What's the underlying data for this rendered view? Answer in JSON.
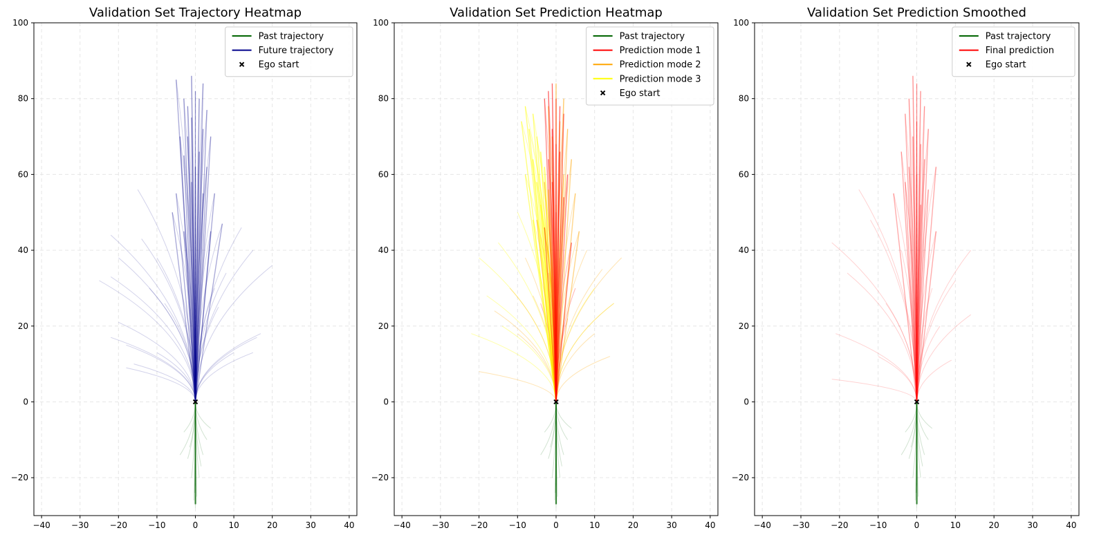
{
  "chart_data": [
    {
      "type": "line",
      "title": "Validation Set Trajectory Heatmap",
      "xlabel": "",
      "ylabel": "",
      "xlim": [
        -42,
        42
      ],
      "ylim": [
        -30,
        100
      ],
      "xticks": [
        -40,
        -30,
        -20,
        -10,
        0,
        10,
        20,
        30,
        40
      ],
      "yticks": [
        -20,
        0,
        20,
        40,
        60,
        80,
        100
      ],
      "grid": true,
      "legend_position": "top-right",
      "legend": [
        {
          "label": "Past trajectory",
          "color": "#006400",
          "kind": "line"
        },
        {
          "label": "Future trajectory",
          "color": "#00008b",
          "kind": "line"
        },
        {
          "label": "Ego start",
          "color": "#000000",
          "kind": "marker"
        }
      ],
      "ego_start": [
        0,
        0
      ],
      "series": [
        {
          "name": "Past trajectory",
          "color": "#006400",
          "opacity": 0.18,
          "endpoints": [
            [
              0,
              -28
            ],
            [
              -0.4,
              -26
            ],
            [
              0.4,
              -25
            ],
            [
              -1,
              -20
            ],
            [
              1,
              -20
            ],
            [
              -2,
              -15
            ],
            [
              2,
              -14
            ],
            [
              -4,
              -14
            ],
            [
              3,
              -10
            ],
            [
              -3,
              -8
            ],
            [
              0,
              -22
            ],
            [
              0.2,
              -27
            ],
            [
              -0.2,
              -24
            ],
            [
              1.5,
              -17
            ],
            [
              -1.5,
              -12
            ],
            [
              4,
              -7
            ]
          ]
        },
        {
          "name": "Future trajectory",
          "color": "#00008b",
          "opacity": 0.18,
          "endpoints": [
            [
              -1,
              86
            ],
            [
              -5,
              85
            ],
            [
              -3,
              80
            ],
            [
              2,
              84
            ],
            [
              3,
              77
            ],
            [
              -2,
              78
            ],
            [
              0,
              82
            ],
            [
              1,
              80
            ],
            [
              -1,
              75
            ],
            [
              2,
              72
            ],
            [
              -2,
              70
            ],
            [
              4,
              70
            ],
            [
              -4,
              70
            ],
            [
              1,
              66
            ],
            [
              -3,
              65
            ],
            [
              0,
              62
            ],
            [
              3,
              62
            ],
            [
              -1,
              58
            ],
            [
              5,
              55
            ],
            [
              -5,
              55
            ],
            [
              2,
              55
            ],
            [
              -15,
              56
            ],
            [
              7,
              47
            ],
            [
              12,
              46
            ],
            [
              -22,
              44
            ],
            [
              -14,
              43
            ],
            [
              15,
              40
            ],
            [
              20,
              36
            ],
            [
              -25,
              32
            ],
            [
              -20,
              38
            ],
            [
              -22,
              33
            ],
            [
              -10,
              38
            ],
            [
              8,
              34
            ],
            [
              17,
              18
            ],
            [
              16,
              17
            ],
            [
              -22,
              17
            ],
            [
              -20,
              21
            ],
            [
              -18,
              15
            ],
            [
              15,
              13
            ],
            [
              -18,
              9
            ],
            [
              -16,
              10
            ],
            [
              -8,
              26
            ],
            [
              5,
              30
            ],
            [
              -3,
              45
            ],
            [
              4,
              45
            ],
            [
              6,
              25
            ],
            [
              10,
              13
            ],
            [
              -10,
              13
            ],
            [
              -6,
              50
            ],
            [
              -12,
              30
            ]
          ]
        }
      ]
    },
    {
      "type": "line",
      "title": "Validation Set Prediction Heatmap",
      "xlabel": "",
      "ylabel": "",
      "xlim": [
        -42,
        42
      ],
      "ylim": [
        -30,
        100
      ],
      "xticks": [
        -40,
        -30,
        -20,
        -10,
        0,
        10,
        20,
        30,
        40
      ],
      "yticks": [
        -20,
        0,
        20,
        40,
        60,
        80,
        100
      ],
      "grid": true,
      "legend_position": "top-right",
      "legend": [
        {
          "label": "Past trajectory",
          "color": "#006400",
          "kind": "line"
        },
        {
          "label": "Prediction mode 1",
          "color": "#ff0000",
          "kind": "line"
        },
        {
          "label": "Prediction mode 2",
          "color": "#ffa500",
          "kind": "line"
        },
        {
          "label": "Prediction mode 3",
          "color": "#ffff00",
          "kind": "line"
        },
        {
          "label": "Ego start",
          "color": "#000000",
          "kind": "marker"
        }
      ],
      "ego_start": [
        0,
        0
      ],
      "series": [
        {
          "name": "Past trajectory",
          "color": "#006400",
          "opacity": 0.18,
          "endpoints": [
            [
              0,
              -28
            ],
            [
              -0.4,
              -26
            ],
            [
              0.4,
              -25
            ],
            [
              -1,
              -20
            ],
            [
              1,
              -20
            ],
            [
              -2,
              -15
            ],
            [
              2,
              -14
            ],
            [
              -4,
              -14
            ],
            [
              3,
              -10
            ],
            [
              -3,
              -8
            ],
            [
              0,
              -22
            ],
            [
              0.2,
              -27
            ],
            [
              -0.2,
              -24
            ],
            [
              1.5,
              -17
            ],
            [
              -1.5,
              -12
            ],
            [
              4,
              -7
            ]
          ]
        },
        {
          "name": "Prediction mode 3",
          "color": "#ffff00",
          "opacity": 0.35,
          "endpoints": [
            [
              -8,
              78
            ],
            [
              -6,
              76
            ],
            [
              -7,
              72
            ],
            [
              -5,
              70
            ],
            [
              -9,
              74
            ],
            [
              -4,
              66
            ],
            [
              -6,
              64
            ],
            [
              -3,
              62
            ],
            [
              -8,
              60
            ],
            [
              -5,
              58
            ],
            [
              -2,
              56
            ],
            [
              -4,
              52
            ],
            [
              -10,
              50
            ],
            [
              -6,
              48
            ],
            [
              -3,
              46
            ],
            [
              -15,
              42
            ],
            [
              -20,
              38
            ],
            [
              -18,
              28
            ],
            [
              -14,
              20
            ],
            [
              -22,
              18
            ],
            [
              10,
              30
            ],
            [
              15,
              26
            ]
          ]
        },
        {
          "name": "Prediction mode 2",
          "color": "#ffa500",
          "opacity": 0.3,
          "endpoints": [
            [
              0,
              84
            ],
            [
              2,
              80
            ],
            [
              -2,
              78
            ],
            [
              1,
              74
            ],
            [
              3,
              72
            ],
            [
              -1,
              70
            ],
            [
              4,
              64
            ],
            [
              2,
              60
            ],
            [
              -3,
              58
            ],
            [
              5,
              55
            ],
            [
              0,
              52
            ],
            [
              -5,
              48
            ],
            [
              6,
              45
            ],
            [
              8,
              40
            ],
            [
              -8,
              38
            ],
            [
              12,
              35
            ],
            [
              17,
              38
            ],
            [
              15,
              26
            ],
            [
              -12,
              30
            ],
            [
              -16,
              24
            ],
            [
              -10,
              18
            ],
            [
              14,
              12
            ],
            [
              -20,
              8
            ],
            [
              10,
              18
            ],
            [
              -6,
              28
            ]
          ]
        },
        {
          "name": "Prediction mode 1",
          "color": "#ff0000",
          "opacity": 0.3,
          "endpoints": [
            [
              -1,
              84
            ],
            [
              -2,
              82
            ],
            [
              0,
              80
            ],
            [
              1,
              78
            ],
            [
              -3,
              80
            ],
            [
              2,
              76
            ],
            [
              -1,
              72
            ],
            [
              0,
              68
            ],
            [
              1,
              66
            ],
            [
              -2,
              64
            ],
            [
              3,
              60
            ],
            [
              -1,
              58
            ],
            [
              2,
              54
            ],
            [
              0,
              50
            ],
            [
              -3,
              46
            ],
            [
              4,
              42
            ],
            [
              1,
              38
            ],
            [
              -2,
              34
            ],
            [
              5,
              30
            ],
            [
              -4,
              26
            ],
            [
              3,
              22
            ]
          ]
        }
      ]
    },
    {
      "type": "line",
      "title": "Validation Set Prediction Smoothed",
      "xlabel": "",
      "ylabel": "",
      "xlim": [
        -42,
        42
      ],
      "ylim": [
        -30,
        100
      ],
      "xticks": [
        -40,
        -30,
        -20,
        -10,
        0,
        10,
        20,
        30,
        40
      ],
      "yticks": [
        -20,
        0,
        20,
        40,
        60,
        80,
        100
      ],
      "grid": true,
      "legend_position": "top-right",
      "legend": [
        {
          "label": "Past trajectory",
          "color": "#006400",
          "kind": "line"
        },
        {
          "label": "Final prediction",
          "color": "#ff0000",
          "kind": "line"
        },
        {
          "label": "Ego start",
          "color": "#000000",
          "kind": "marker"
        }
      ],
      "ego_start": [
        0,
        0
      ],
      "series": [
        {
          "name": "Past trajectory",
          "color": "#006400",
          "opacity": 0.18,
          "endpoints": [
            [
              0,
              -28
            ],
            [
              -0.4,
              -26
            ],
            [
              0.4,
              -25
            ],
            [
              -1,
              -20
            ],
            [
              1,
              -20
            ],
            [
              -2,
              -15
            ],
            [
              2,
              -14
            ],
            [
              -4,
              -14
            ],
            [
              3,
              -10
            ],
            [
              -3,
              -8
            ],
            [
              0,
              -22
            ],
            [
              0.2,
              -27
            ],
            [
              -0.2,
              -24
            ],
            [
              1.5,
              -17
            ],
            [
              -1.5,
              -12
            ],
            [
              4,
              -7
            ]
          ]
        },
        {
          "name": "Final prediction",
          "color": "#ff0000",
          "opacity": 0.18,
          "endpoints": [
            [
              -1,
              86
            ],
            [
              0,
              84
            ],
            [
              1,
              82
            ],
            [
              -2,
              80
            ],
            [
              2,
              78
            ],
            [
              -3,
              76
            ],
            [
              0,
              74
            ],
            [
              3,
              72
            ],
            [
              -1,
              70
            ],
            [
              1,
              68
            ],
            [
              -4,
              66
            ],
            [
              2,
              64
            ],
            [
              -2,
              62
            ],
            [
              5,
              62
            ],
            [
              0,
              60
            ],
            [
              -3,
              58
            ],
            [
              3,
              56
            ],
            [
              -6,
              55
            ],
            [
              1,
              52
            ],
            [
              -15,
              56
            ],
            [
              -12,
              48
            ],
            [
              -22,
              42
            ],
            [
              5,
              45
            ],
            [
              -18,
              34
            ],
            [
              -21,
              18
            ],
            [
              14,
              40
            ],
            [
              14,
              23
            ],
            [
              10,
              32
            ],
            [
              -10,
              12
            ],
            [
              -22,
              6
            ],
            [
              9,
              11
            ],
            [
              -8,
              26
            ],
            [
              4,
              30
            ],
            [
              -4,
              40
            ],
            [
              6,
              20
            ]
          ]
        }
      ]
    }
  ]
}
